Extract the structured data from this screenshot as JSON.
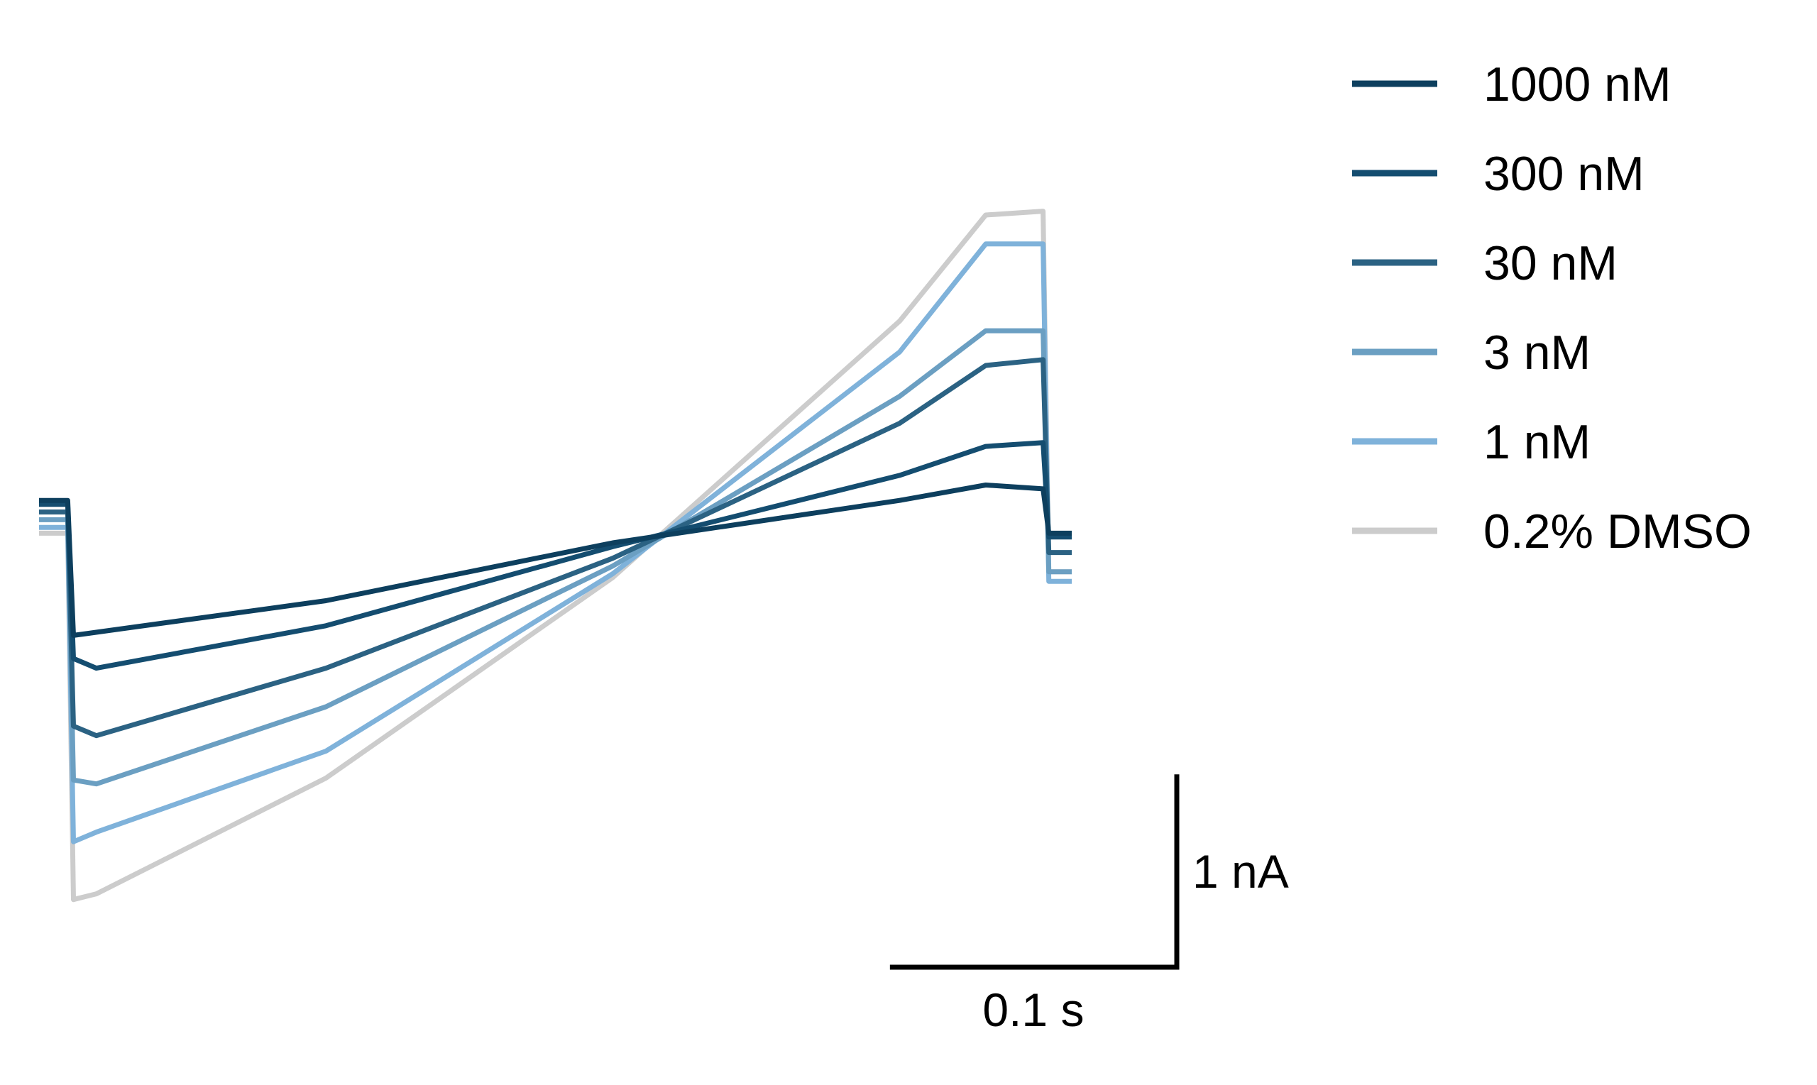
{
  "chart_data": {
    "type": "line",
    "title": "",
    "xlabel": "",
    "ylabel": "",
    "grid": false,
    "axes_visible": false,
    "legend_position": "top-right",
    "x_units": "s",
    "y_units": "nA",
    "x_range": [
      0,
      0.36
    ],
    "y_range": [
      -2.2,
      2.4
    ],
    "scale_bar": {
      "x_label": "0.1 s",
      "x_value": 0.1,
      "y_label": "1 nA",
      "y_value": 1
    },
    "series": [
      {
        "name": "1000 nM",
        "color": "#0d3f5e",
        "x": [
          0,
          0.01,
          0.012,
          0.1,
          0.2,
          0.3,
          0.33,
          0.35,
          0.352,
          0.36
        ],
        "y": [
          0.32,
          0.32,
          -0.38,
          -0.2,
          0.1,
          0.32,
          0.4,
          0.38,
          0.15,
          0.15
        ]
      },
      {
        "name": "300 nM",
        "color": "#144d70",
        "x": [
          0,
          0.01,
          0.012,
          0.02,
          0.1,
          0.2,
          0.3,
          0.33,
          0.35,
          0.352,
          0.36
        ],
        "y": [
          0.3,
          0.3,
          -0.5,
          -0.55,
          -0.33,
          0.08,
          0.45,
          0.6,
          0.62,
          0.13,
          0.13
        ]
      },
      {
        "name": "30 nM",
        "color": "#2b6283",
        "x": [
          0,
          0.01,
          0.012,
          0.02,
          0.1,
          0.2,
          0.3,
          0.33,
          0.35,
          0.352,
          0.36
        ],
        "y": [
          0.26,
          0.26,
          -0.85,
          -0.9,
          -0.55,
          0.02,
          0.72,
          1.02,
          1.05,
          0.05,
          0.05
        ]
      },
      {
        "name": "3 nM",
        "color": "#6b9fc2",
        "x": [
          0,
          0.01,
          0.012,
          0.02,
          0.1,
          0.2,
          0.3,
          0.33,
          0.35,
          0.352,
          0.36
        ],
        "y": [
          0.22,
          0.22,
          -1.13,
          -1.15,
          -0.75,
          -0.02,
          0.86,
          1.2,
          1.2,
          -0.05,
          -0.05
        ]
      },
      {
        "name": "1 nM",
        "color": "#7fb2da",
        "x": [
          0,
          0.01,
          0.012,
          0.02,
          0.1,
          0.2,
          0.3,
          0.33,
          0.35,
          0.352,
          0.36
        ],
        "y": [
          0.18,
          0.18,
          -1.45,
          -1.4,
          -0.98,
          -0.06,
          1.09,
          1.65,
          1.65,
          -0.1,
          -0.1
        ]
      },
      {
        "name": "0.2% DMSO",
        "color": "#cccccc",
        "x": [
          0,
          0.01,
          0.012,
          0.02,
          0.1,
          0.2,
          0.3,
          0.33,
          0.35,
          0.352,
          0.36
        ],
        "y": [
          0.15,
          0.15,
          -1.75,
          -1.72,
          -1.12,
          -0.08,
          1.25,
          1.8,
          1.82,
          -0.05,
          -0.05
        ]
      }
    ]
  }
}
